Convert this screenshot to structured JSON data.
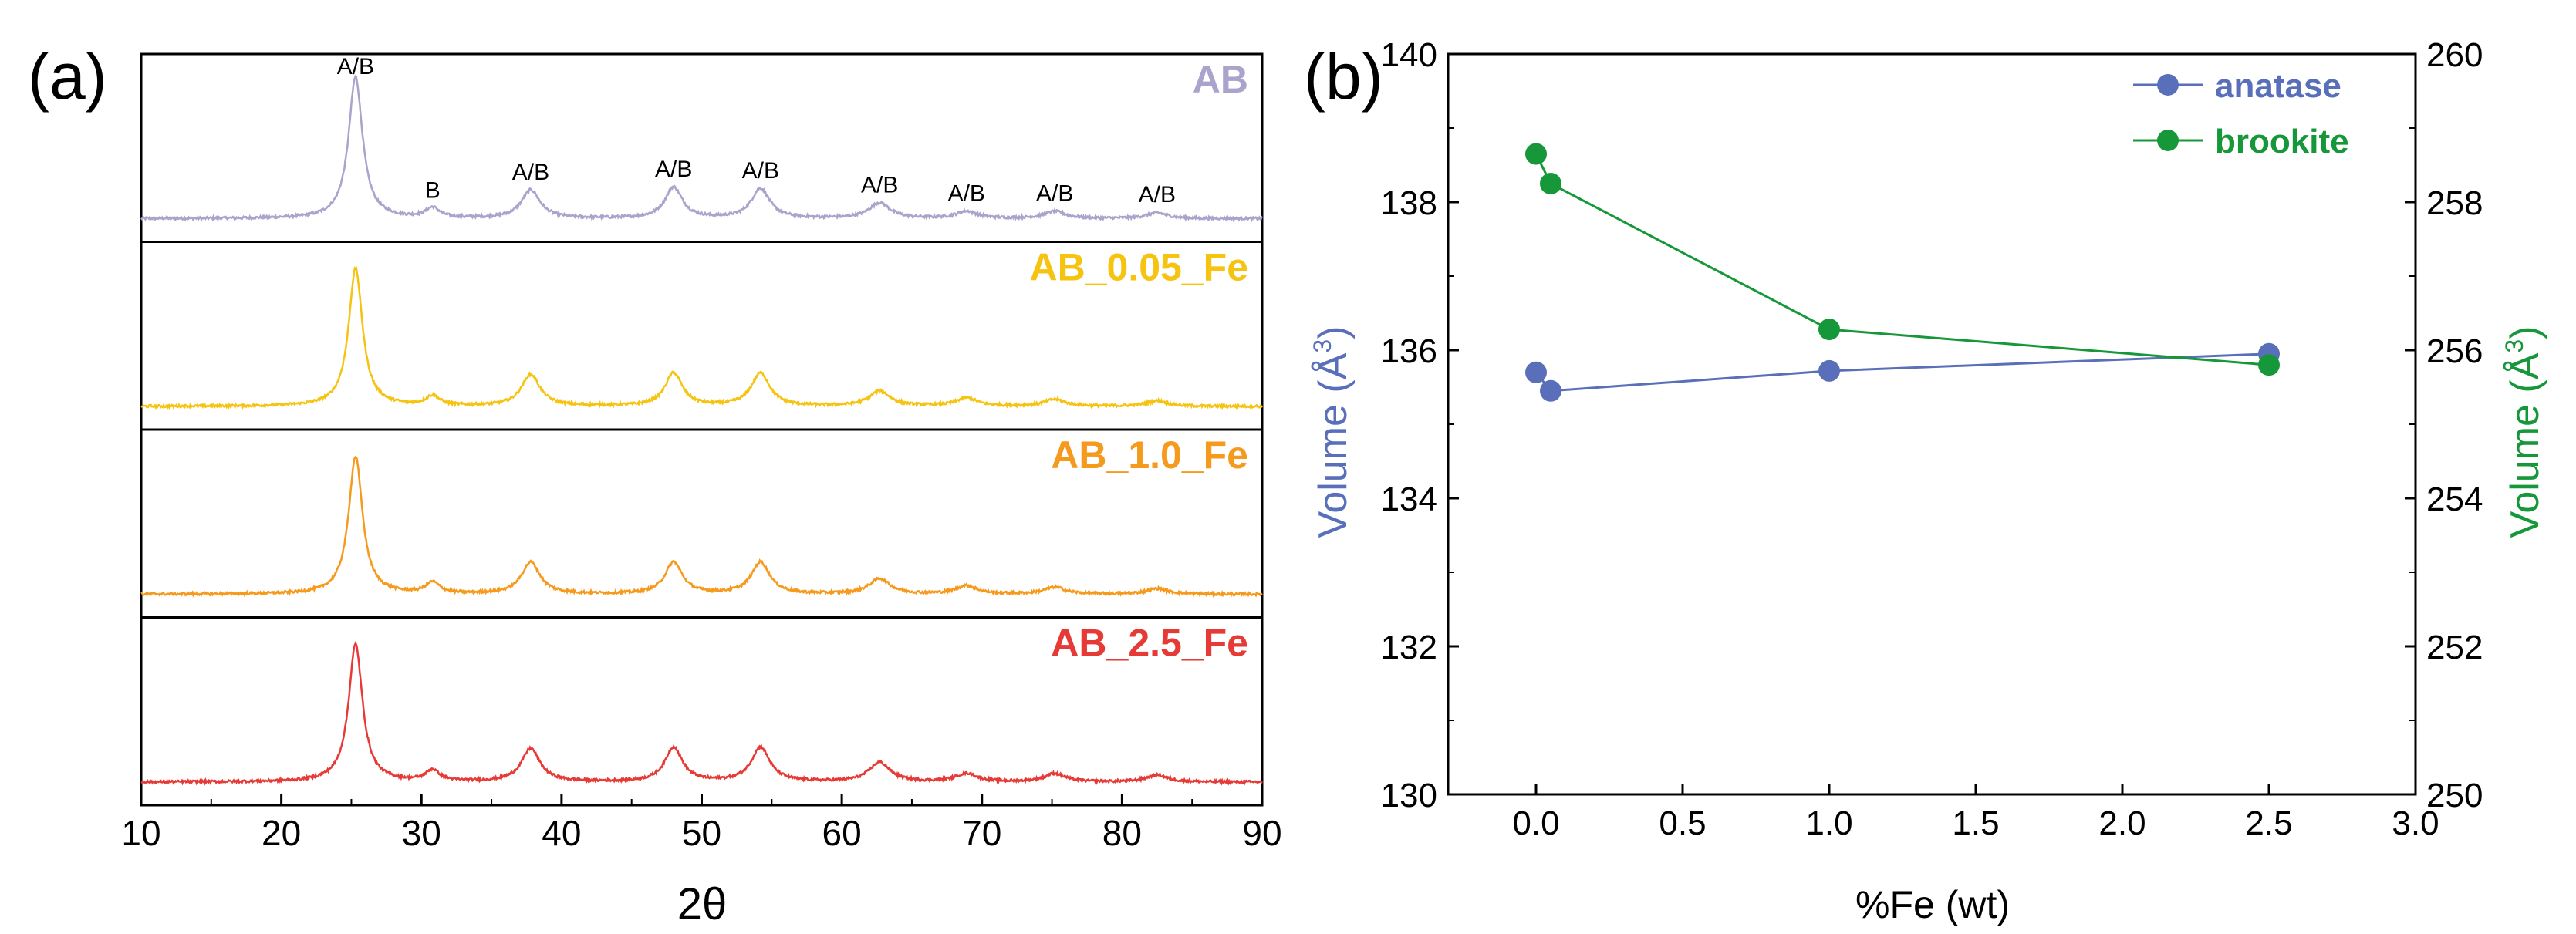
{
  "colors": {
    "AB": "#aaa3cb",
    "AB_0.05_Fe": "#f5c310",
    "AB_1.0_Fe": "#f59a1c",
    "AB_2.5_Fe": "#e53a36",
    "anatase": "#5a6fba",
    "brookite": "#16983a",
    "ylabel_left": "#5a6fba",
    "ylabel_right": "#16983a"
  },
  "chart_data": [
    {
      "type": "line",
      "panel_label": "(a)",
      "xlabel": "2θ",
      "xlim": [
        10,
        90
      ],
      "x_ticks": [
        "10",
        "20",
        "30",
        "40",
        "50",
        "60",
        "70",
        "80",
        "90"
      ],
      "x_tick_values": [
        10,
        20,
        30,
        40,
        50,
        60,
        70,
        80,
        90
      ],
      "layout": "stacked panels, label top-right",
      "series": [
        {
          "name": "AB",
          "peaks": [
            [
              25.3,
              1.0
            ],
            [
              30.8,
              0.07
            ],
            [
              37.8,
              0.2
            ],
            [
              48.0,
              0.22
            ],
            [
              54.2,
              0.21
            ],
            [
              62.7,
              0.11
            ],
            [
              68.9,
              0.05
            ],
            [
              75.2,
              0.05
            ],
            [
              82.5,
              0.04
            ]
          ]
        },
        {
          "name": "AB_0.05_Fe",
          "peaks": [
            [
              25.3,
              1.0
            ],
            [
              30.8,
              0.07
            ],
            [
              37.8,
              0.23
            ],
            [
              48.0,
              0.24
            ],
            [
              54.2,
              0.24
            ],
            [
              62.7,
              0.11
            ],
            [
              68.9,
              0.06
            ],
            [
              75.2,
              0.05
            ],
            [
              82.5,
              0.04
            ]
          ]
        },
        {
          "name": "AB_1.0_Fe",
          "peaks": [
            [
              25.3,
              1.0
            ],
            [
              30.8,
              0.08
            ],
            [
              37.8,
              0.23
            ],
            [
              48.0,
              0.23
            ],
            [
              54.2,
              0.23
            ],
            [
              62.7,
              0.11
            ],
            [
              68.9,
              0.06
            ],
            [
              75.2,
              0.05
            ],
            [
              82.5,
              0.04
            ]
          ]
        },
        {
          "name": "AB_2.5_Fe",
          "peaks": [
            [
              25.3,
              1.0
            ],
            [
              30.8,
              0.08
            ],
            [
              37.8,
              0.24
            ],
            [
              48.0,
              0.25
            ],
            [
              54.2,
              0.25
            ],
            [
              62.7,
              0.14
            ],
            [
              68.9,
              0.06
            ],
            [
              75.2,
              0.06
            ],
            [
              82.5,
              0.05
            ]
          ]
        }
      ],
      "annotations": [
        {
          "text": "A/B",
          "x": 25.3
        },
        {
          "text": "B",
          "x": 30.8
        },
        {
          "text": "A/B",
          "x": 37.8
        },
        {
          "text": "A/B",
          "x": 48.0
        },
        {
          "text": "A/B",
          "x": 54.2
        },
        {
          "text": "A/B",
          "x": 62.7
        },
        {
          "text": "A/B",
          "x": 68.9
        },
        {
          "text": "A/B",
          "x": 75.2
        },
        {
          "text": "A/B",
          "x": 82.5
        }
      ]
    },
    {
      "type": "scatter",
      "panel_label": "(b)",
      "xlabel": "%Fe (wt)",
      "ylabel": "Volume (Å",
      "ylabel_sup": "3",
      "ylabel_close": ")",
      "y2label": "Volume (Å",
      "y2label_sup": "3",
      "y2label_close": ")",
      "xlim": [
        -0.3,
        3.0
      ],
      "ylim": [
        130,
        140
      ],
      "y2lim": [
        250,
        260
      ],
      "x_ticks": [
        "0.0",
        "0.5",
        "1.0",
        "1.5",
        "2.0",
        "2.5",
        "3.0"
      ],
      "x_tick_values": [
        0,
        0.5,
        1.0,
        1.5,
        2.0,
        2.5,
        3.0
      ],
      "y_ticks": [
        "130",
        "132",
        "134",
        "136",
        "138",
        "140"
      ],
      "y_tick_values": [
        130,
        132,
        134,
        136,
        138,
        140
      ],
      "y2_ticks": [
        "250",
        "252",
        "254",
        "256",
        "258",
        "260"
      ],
      "y2_tick_values": [
        250,
        252,
        254,
        256,
        258,
        260
      ],
      "legend": "top-right",
      "series": [
        {
          "name": "anatase",
          "axis": "left",
          "x": [
            0.0,
            0.05,
            1.0,
            2.5
          ],
          "y": [
            135.7,
            135.45,
            135.72,
            135.95
          ]
        },
        {
          "name": "brookite",
          "axis": "right",
          "x": [
            0.0,
            0.05,
            1.0,
            2.5
          ],
          "y": [
            258.65,
            258.25,
            256.28,
            255.8
          ]
        }
      ]
    }
  ]
}
